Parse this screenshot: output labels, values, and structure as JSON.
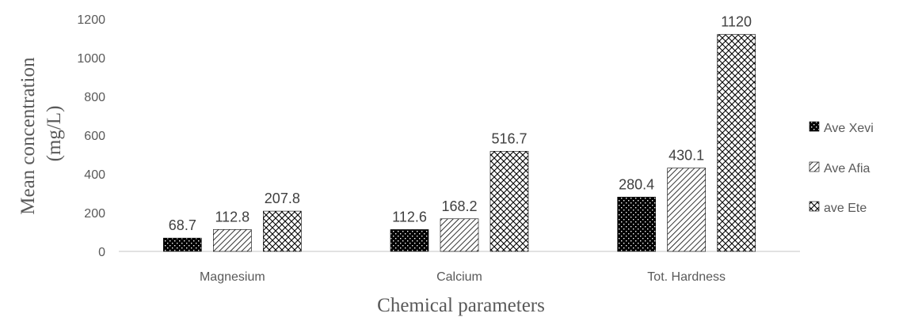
{
  "chart_data": {
    "type": "bar",
    "categories": [
      "Magnesium",
      "Calcium",
      "Tot. Hardness"
    ],
    "series": [
      {
        "name": "Ave Xevi",
        "values": [
          68.7,
          112.6,
          280.4
        ],
        "labels": [
          "68.7",
          "112.6",
          "280.4"
        ],
        "pattern": "dotted-black"
      },
      {
        "name": "Ave Afia",
        "values": [
          112.8,
          168.2,
          430.1
        ],
        "labels": [
          "112.8",
          "168.2",
          "430.1"
        ],
        "pattern": "diagonal-lines"
      },
      {
        "name": "ave Ete",
        "values": [
          207.8,
          516.7,
          1120
        ],
        "labels": [
          "207.8",
          "516.7",
          "1120"
        ],
        "pattern": "crosshatch"
      }
    ],
    "title": "",
    "xlabel": "Chemical parameters",
    "ylabel_line1": "Mean concentration",
    "ylabel_line2": "(mg/L)",
    "ylim": [
      0,
      1200
    ],
    "yticks": [
      "0",
      "200",
      "400",
      "600",
      "800",
      "1000",
      "1200"
    ],
    "grid": false,
    "legend_position": "right",
    "colors": {
      "ink": "#000000",
      "axis": "#d9d9d9",
      "text": "#595959"
    }
  }
}
